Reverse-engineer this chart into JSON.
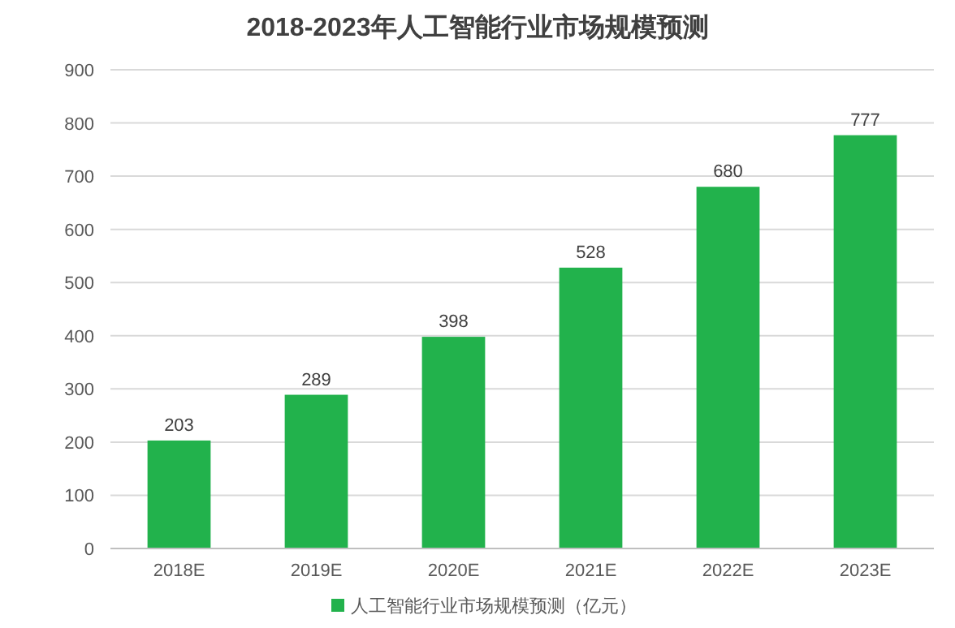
{
  "chart_data": {
    "type": "bar",
    "title": "2018-2023年人工智能行业市场规模预测",
    "categories": [
      "2018E",
      "2019E",
      "2020E",
      "2021E",
      "2022E",
      "2023E"
    ],
    "series": [
      {
        "name": "人工智能行业市场规模预测（亿元）",
        "color": "#22b24c",
        "values": [
          203,
          289,
          398,
          528,
          680,
          777
        ]
      }
    ],
    "ylim": [
      0,
      900
    ],
    "yticks": [
      0,
      100,
      200,
      300,
      400,
      500,
      600,
      700,
      800,
      900
    ],
    "grid": "y",
    "legend": "bottom",
    "data_labels": true
  }
}
